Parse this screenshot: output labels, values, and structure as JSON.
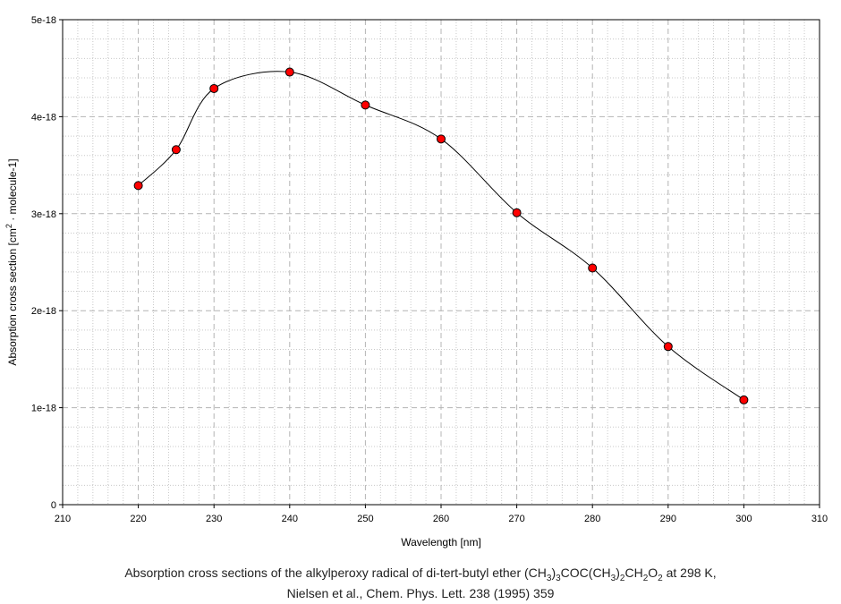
{
  "chart_data": {
    "type": "line",
    "xlabel": "Wavelength [nm]",
    "ylabel_parts": [
      "Absorption cross section [cm",
      "2",
      " · molecule-1]"
    ],
    "xlim": [
      210,
      310
    ],
    "ylim": [
      0,
      5e-18
    ],
    "x_ticks": [
      210,
      220,
      230,
      240,
      250,
      260,
      270,
      280,
      290,
      300,
      310
    ],
    "x_tick_labels": [
      "210",
      "220",
      "230",
      "240",
      "250",
      "260",
      "270",
      "280",
      "290",
      "300",
      "310"
    ],
    "y_ticks": [
      0,
      1e-18,
      2e-18,
      3e-18,
      4e-18,
      5e-18
    ],
    "y_tick_labels": [
      "0",
      "1e-18",
      "2e-18",
      "3e-18",
      "4e-18",
      "5e-18"
    ],
    "grid": true,
    "smooth_line": true,
    "marker_color": "#ff0000",
    "line_color": "#000000",
    "series": [
      {
        "x": [
          220,
          225,
          230,
          240,
          250,
          260,
          270,
          280,
          290,
          300
        ],
        "values": [
          3.29e-18,
          3.66e-18,
          4.29e-18,
          4.46e-18,
          4.12e-18,
          3.77e-18,
          3.01e-18,
          2.44e-18,
          1.63e-18,
          1.08e-18
        ]
      }
    ]
  },
  "caption": {
    "line1_parts": [
      {
        "t": "Absorption cross sections of the  alkylperoxy radical of di-tert-butyl ether (CH"
      },
      {
        "t": "3",
        "sub": true
      },
      {
        "t": ")"
      },
      {
        "t": "3",
        "sub": true
      },
      {
        "t": "COC(CH"
      },
      {
        "t": "3",
        "sub": true
      },
      {
        "t": ")"
      },
      {
        "t": "2",
        "sub": true
      },
      {
        "t": "CH"
      },
      {
        "t": "2",
        "sub": true
      },
      {
        "t": "O"
      },
      {
        "t": "2",
        "sub": true
      },
      {
        "t": " at 298 K,"
      }
    ],
    "line2": "Nielsen et al., Chem. Phys. Lett. 238 (1995) 359"
  }
}
